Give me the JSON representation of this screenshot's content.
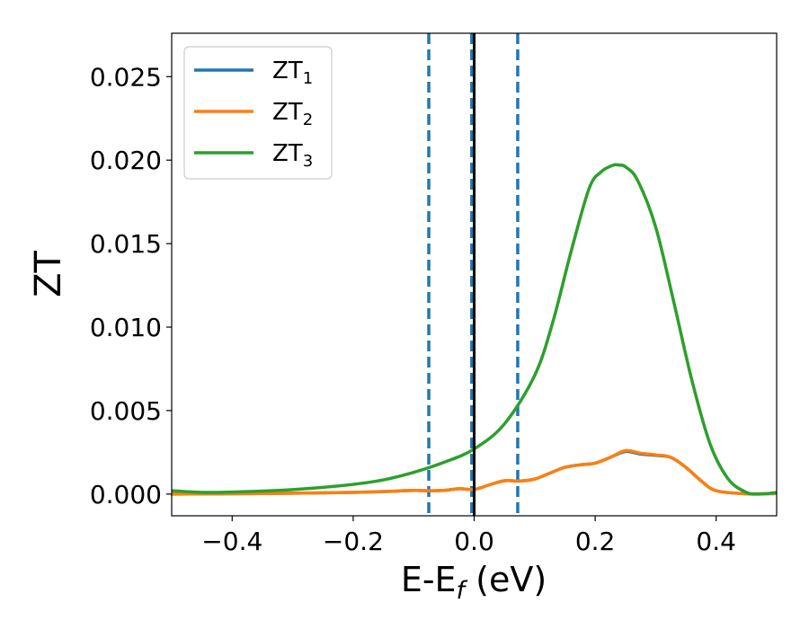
{
  "chart_data": {
    "type": "line",
    "xlabel": "E-E",
    "xlabel_subscript": "f",
    "xlabel_unit": " (eV)",
    "ylabel": "ZT",
    "xlim": [
      -0.5,
      0.5
    ],
    "ylim": [
      -0.0013,
      0.0276
    ],
    "x_ticks": [
      -0.4,
      -0.2,
      0.0,
      0.2,
      0.4
    ],
    "x_tick_labels": [
      "−0.4",
      "−0.2",
      "0.0",
      "0.2",
      "0.4"
    ],
    "y_ticks": [
      0.0,
      0.005,
      0.01,
      0.015,
      0.02,
      0.025
    ],
    "y_tick_labels": [
      "0.000",
      "0.005",
      "0.010",
      "0.015",
      "0.020",
      "0.025"
    ],
    "grid": false,
    "legend_position": "top-left",
    "series": [
      {
        "name": "ZT",
        "subscript": "1",
        "color": "#1f77b4",
        "x": [
          -0.5,
          -0.4,
          -0.3,
          -0.2,
          -0.15,
          -0.1,
          -0.075,
          -0.05,
          -0.025,
          0.0,
          0.025,
          0.05,
          0.075,
          0.1,
          0.125,
          0.15,
          0.175,
          0.2,
          0.225,
          0.25,
          0.275,
          0.3,
          0.325,
          0.35,
          0.375,
          0.4,
          0.45,
          0.5
        ],
        "y": [
          0.0,
          2e-05,
          5e-05,
          0.0001,
          0.00015,
          0.00022,
          0.0002,
          0.00022,
          0.00032,
          0.00028,
          0.00055,
          0.0008,
          0.00078,
          0.0009,
          0.00125,
          0.0016,
          0.00175,
          0.00185,
          0.0022,
          0.00255,
          0.0024,
          0.00232,
          0.0022,
          0.0016,
          0.0008,
          0.0002,
          2e-05,
          3e-05
        ]
      },
      {
        "name": "ZT",
        "subscript": "2",
        "color": "#ff7f0e",
        "x": [
          -0.5,
          -0.4,
          -0.3,
          -0.2,
          -0.15,
          -0.1,
          -0.075,
          -0.05,
          -0.025,
          0.0,
          0.025,
          0.05,
          0.075,
          0.1,
          0.125,
          0.15,
          0.175,
          0.2,
          0.225,
          0.25,
          0.275,
          0.3,
          0.325,
          0.35,
          0.375,
          0.4,
          0.45,
          0.5
        ],
        "y": [
          0.0,
          2e-05,
          5e-05,
          0.0001,
          0.00015,
          0.00022,
          0.0002,
          0.00022,
          0.00032,
          0.00028,
          0.00055,
          0.0008,
          0.00078,
          0.0009,
          0.00125,
          0.0016,
          0.00175,
          0.00185,
          0.0022,
          0.0026,
          0.00245,
          0.00235,
          0.0022,
          0.0016,
          0.0008,
          0.0002,
          2e-05,
          3e-05
        ]
      },
      {
        "name": "ZT",
        "subscript": "3",
        "color": "#2ca02c",
        "x": [
          -0.5,
          -0.45,
          -0.4,
          -0.35,
          -0.3,
          -0.25,
          -0.2,
          -0.15,
          -0.1,
          -0.05,
          0.0,
          0.05,
          0.1,
          0.13,
          0.16,
          0.19,
          0.21,
          0.23,
          0.24,
          0.25,
          0.27,
          0.3,
          0.33,
          0.36,
          0.39,
          0.42,
          0.45,
          0.47,
          0.49,
          0.5
        ],
        "y": [
          0.0002,
          0.0001,
          0.00012,
          0.00018,
          0.00027,
          0.0004,
          0.00058,
          0.00085,
          0.0013,
          0.0019,
          0.0027,
          0.0042,
          0.0071,
          0.0103,
          0.0145,
          0.0183,
          0.0193,
          0.0197,
          0.0197,
          0.0196,
          0.0188,
          0.016,
          0.0115,
          0.0068,
          0.003,
          0.0009,
          0.0001,
          0.0,
          5e-05,
          0.0001
        ]
      }
    ],
    "vlines": [
      {
        "x": -0.075,
        "color": "#1f77b4",
        "style": "dashed"
      },
      {
        "x": -0.004,
        "color": "#1f77b4",
        "style": "dashed"
      },
      {
        "x": 0.0,
        "color": "#000000",
        "style": "solid"
      },
      {
        "x": 0.072,
        "color": "#1f77b4",
        "style": "dashed"
      }
    ]
  }
}
